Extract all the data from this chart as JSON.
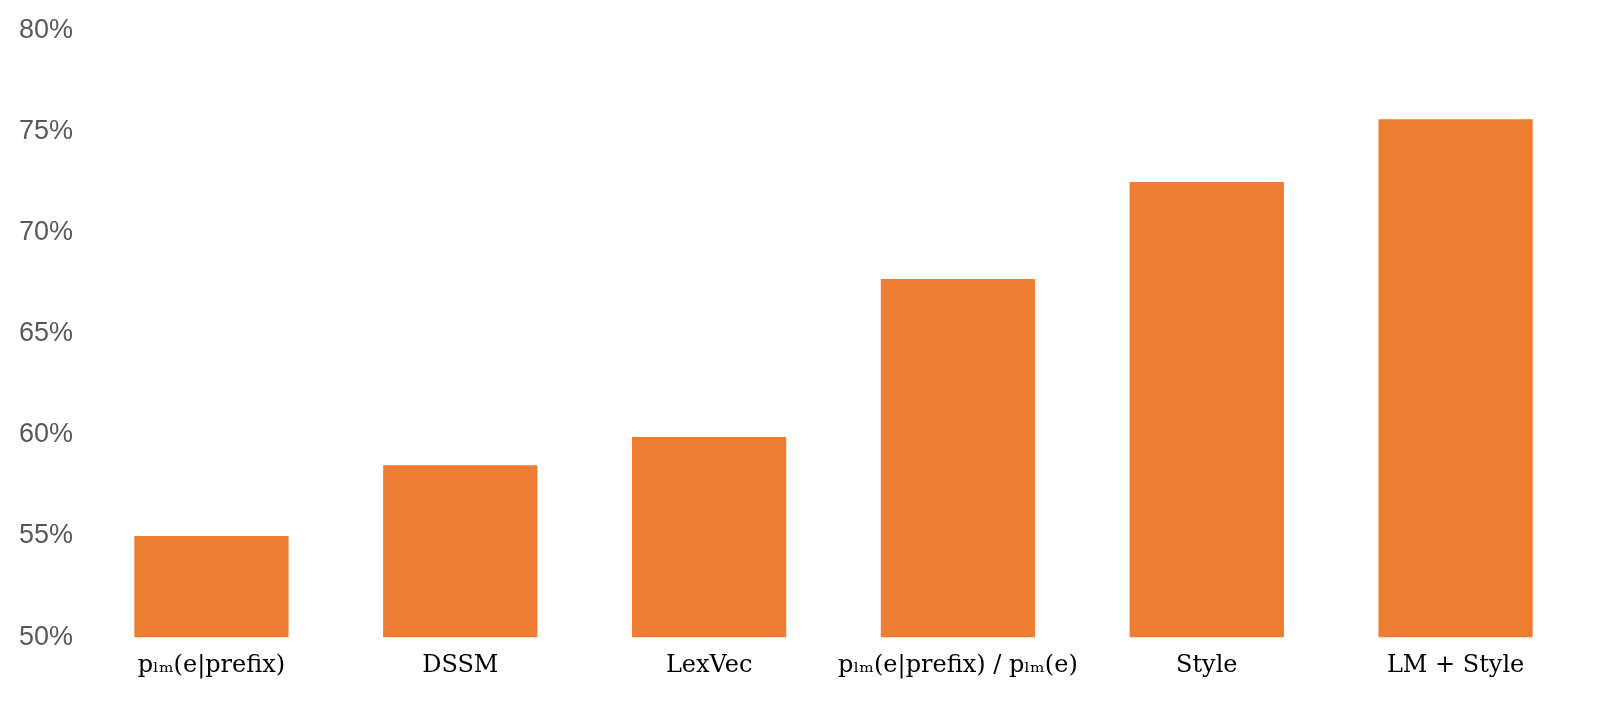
{
  "chart_data": {
    "type": "bar",
    "categories": [
      "pₗₘ(e|prefix)",
      "DSSM",
      "LexVec",
      "pₗₘ(e|prefix) / pₗₘ(e)",
      "Style",
      "LM + Style"
    ],
    "values": [
      55.0,
      58.5,
      59.9,
      67.7,
      72.5,
      75.6
    ],
    "color": "#ed7d31",
    "ylim": [
      50,
      80
    ],
    "yticks": [
      {
        "value": 50,
        "label": "50%"
      },
      {
        "value": 55,
        "label": "55%"
      },
      {
        "value": 60,
        "label": "60%"
      },
      {
        "value": 65,
        "label": "65%"
      },
      {
        "value": 70,
        "label": "70%"
      },
      {
        "value": 75,
        "label": "75%"
      },
      {
        "value": 80,
        "label": "80%"
      }
    ],
    "grid": false,
    "legend": false
  }
}
